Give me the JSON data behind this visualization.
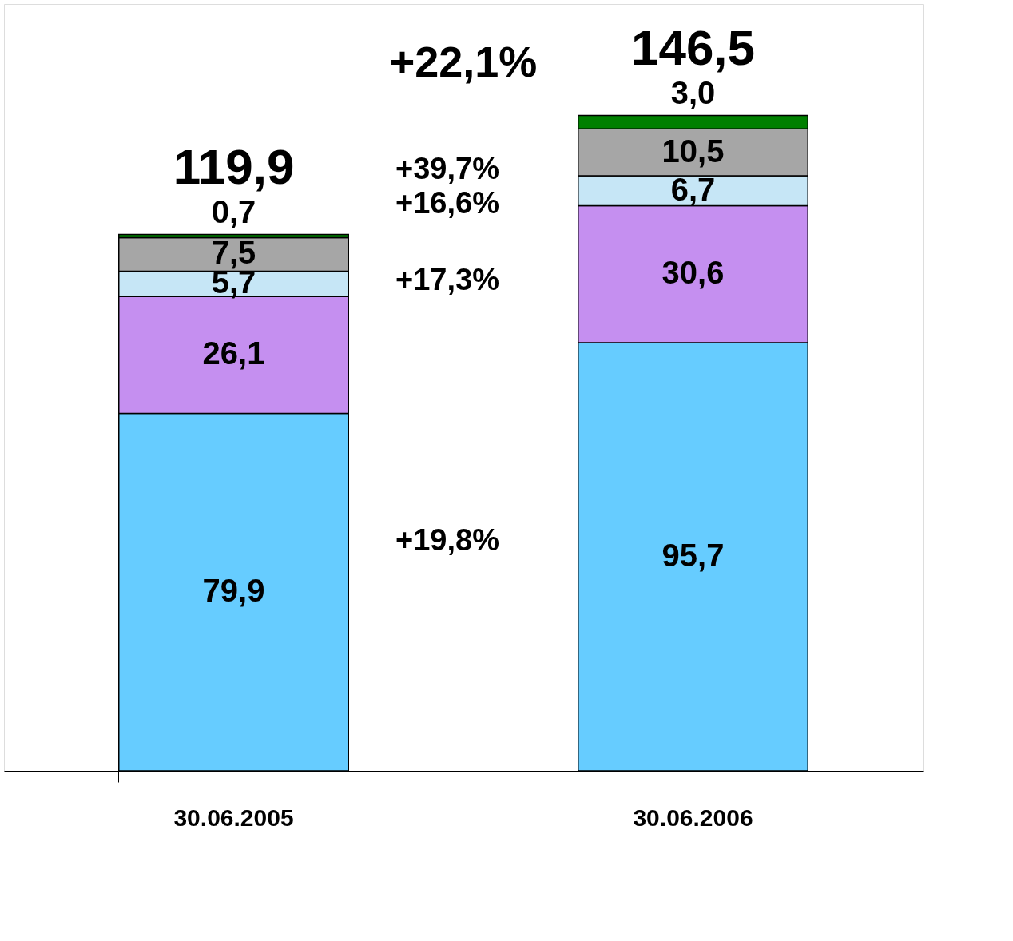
{
  "chart_data": {
    "type": "bar",
    "stacked": true,
    "categories": [
      "30.06.2005",
      "30.06.2006"
    ],
    "series": [
      {
        "color": "#66ccff",
        "values": [
          79.9,
          95.7
        ],
        "value_labels": [
          "79,9",
          "95,7"
        ]
      },
      {
        "color": "#c58ff0",
        "values": [
          26.1,
          30.6
        ],
        "value_labels": [
          "26,1",
          "30,6"
        ]
      },
      {
        "color": "#c6e6f6",
        "values": [
          5.7,
          6.7
        ],
        "value_labels": [
          "5,7",
          "6,7"
        ]
      },
      {
        "color": "#a6a6a6",
        "values": [
          7.5,
          10.5
        ],
        "value_labels": [
          "7,5",
          "10,5"
        ]
      },
      {
        "color": "#008000",
        "values": [
          0.7,
          3.0
        ],
        "value_labels": [
          "0,7",
          "3,0"
        ]
      }
    ],
    "totals": [
      "119,9",
      "146,5"
    ],
    "annotations": [
      "+22,1%",
      "+19,8%",
      "+17,3%",
      "+16,6%",
      "+39,7%"
    ],
    "grid": false,
    "tick_labels": "x"
  }
}
